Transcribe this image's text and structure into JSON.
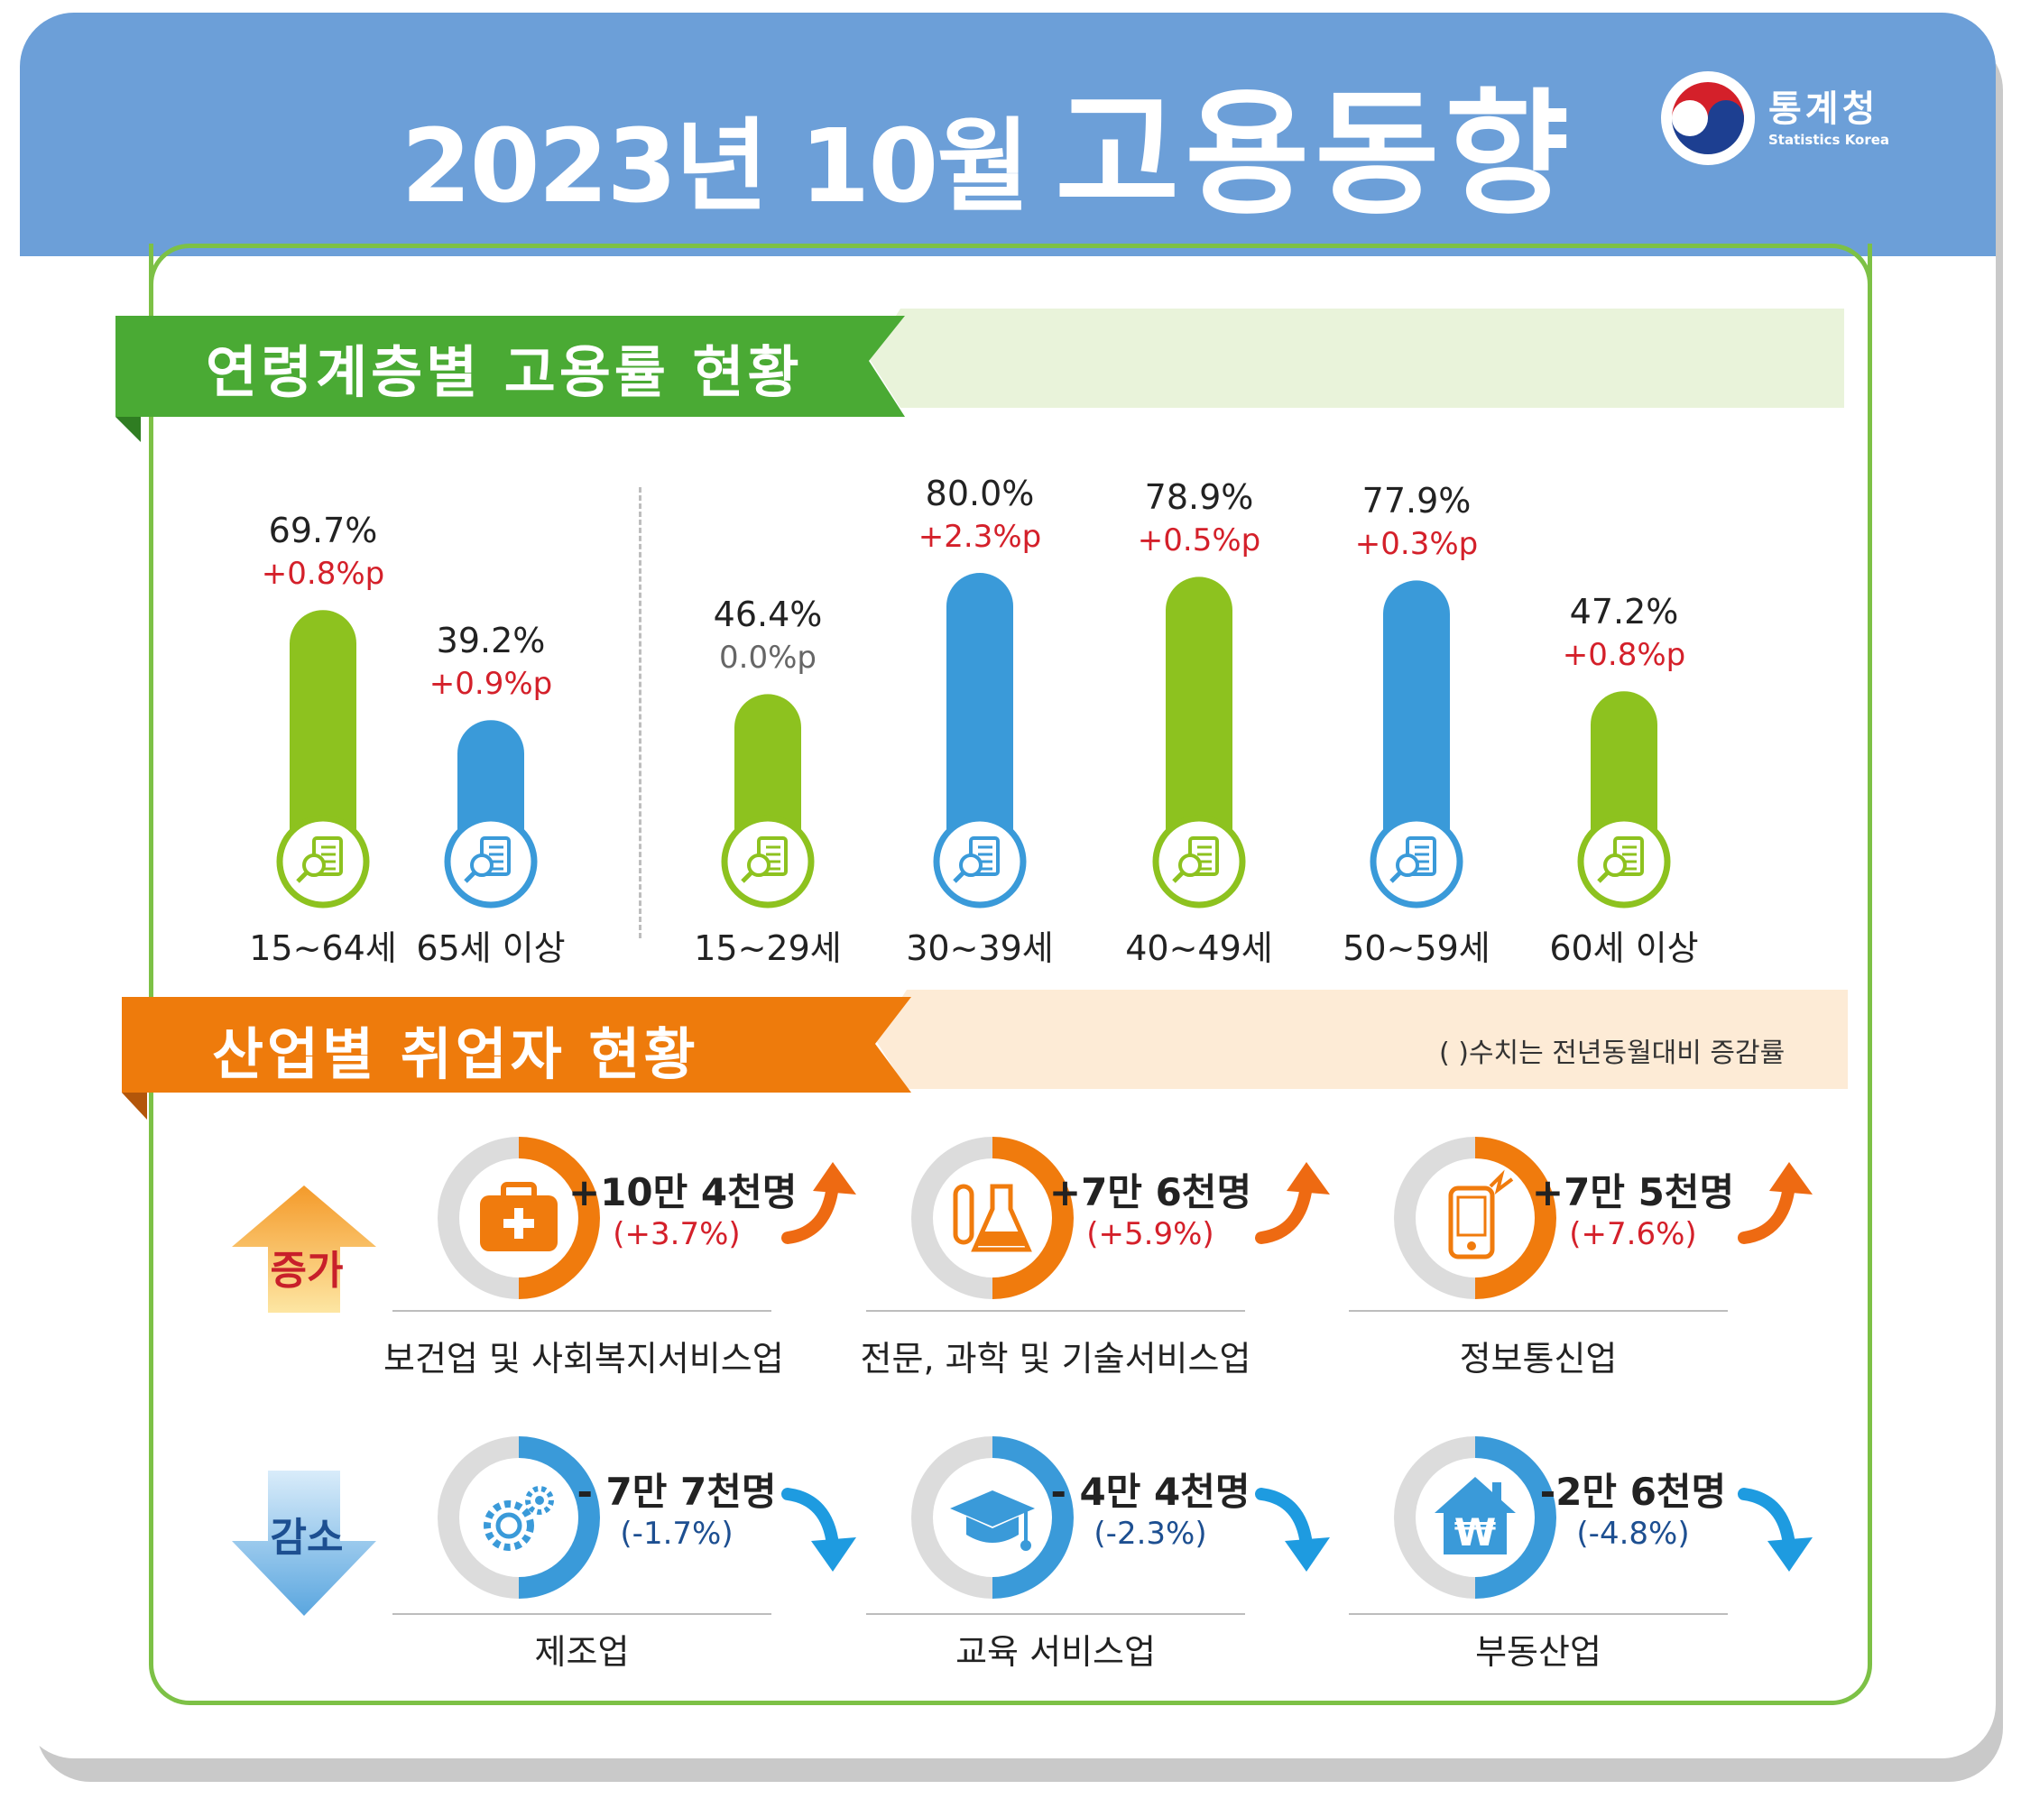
{
  "header": {
    "title_date": "2023년  10월",
    "title_main": "고용동향",
    "logo_name": "통계청",
    "logo_sub": "Statistics Korea"
  },
  "colors": {
    "header_blue": "#6c9fd8",
    "green": "#8dc21f",
    "blue": "#3a9ad9",
    "orange": "#f07b0d",
    "red": "#d4202a"
  },
  "age_section": {
    "title": "연령계층별 고용률 현황"
  },
  "chart_data": {
    "type": "bar",
    "title": "연령계층별 고용률 현황",
    "unit": "%",
    "ylim": [
      0,
      100
    ],
    "groups": [
      {
        "categories": [
          "15~64세",
          "65세 이상"
        ]
      },
      {
        "categories": [
          "15~29세",
          "30~39세",
          "40~49세",
          "50~59세",
          "60세 이상"
        ]
      }
    ],
    "categories": [
      "15~64세",
      "65세 이상",
      "15~29세",
      "30~39세",
      "40~49세",
      "50~59세",
      "60세 이상"
    ],
    "values": [
      69.7,
      39.2,
      46.4,
      80.0,
      78.9,
      77.9,
      47.2
    ],
    "value_labels": [
      "69.7%",
      "39.2%",
      "46.4%",
      "80.0%",
      "78.9%",
      "77.9%",
      "47.2%"
    ],
    "changes": [
      0.8,
      0.9,
      0.0,
      2.3,
      0.5,
      0.3,
      0.8
    ],
    "change_labels": [
      "+0.8%p",
      "+0.9%p",
      "0.0%p",
      "+2.3%p",
      "+0.5%p",
      "+0.3%p",
      "+0.8%p"
    ],
    "bar_colors": [
      "green",
      "blue",
      "green",
      "blue",
      "green",
      "blue",
      "green"
    ]
  },
  "industry_section": {
    "title": "산업별 취업자 현황",
    "note": "(  )수치는 전년동월대비 증감률",
    "increase_label": "증가",
    "decrease_label": "감소",
    "increase": [
      {
        "name": "보건업 및 사회복지서비스업",
        "value": "+10만 4천명",
        "pct": "(+3.7%)",
        "icon": "medical-kit-icon"
      },
      {
        "name": "전문, 과학 및 기술서비스업",
        "value": "+7만 6천명",
        "pct": "(+5.9%)",
        "icon": "lab-flask-icon"
      },
      {
        "name": "정보통신업",
        "value": "+7만 5천명",
        "pct": "(+7.6%)",
        "icon": "phone-signal-icon"
      }
    ],
    "decrease": [
      {
        "name": "제조업",
        "value": "- 7만 7천명",
        "pct": "(-1.7%)",
        "icon": "gears-icon"
      },
      {
        "name": "교육 서비스업",
        "value": "- 4만 4천명",
        "pct": "(-2.3%)",
        "icon": "graduation-cap-icon"
      },
      {
        "name": "부동산업",
        "value": "-2만 6천명",
        "pct": "(-4.8%)",
        "icon": "house-won-icon"
      }
    ]
  }
}
